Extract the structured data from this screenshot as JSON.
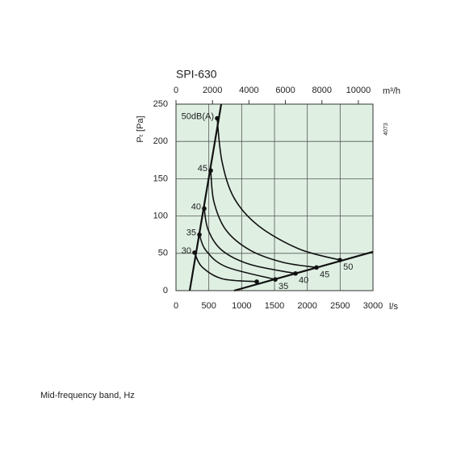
{
  "chart_data": {
    "type": "line",
    "title": "SPI-630",
    "x_label": "l/s",
    "x2_label": "m³/h",
    "y_label": "Pₜ [Pa]",
    "code": "4073",
    "xlim": [
      0,
      3000
    ],
    "xticks": [
      0,
      500,
      1000,
      1500,
      2000,
      2500,
      3000
    ],
    "x2lim": [
      0,
      10800
    ],
    "x2ticks": [
      0,
      2000,
      4000,
      6000,
      8000,
      10000
    ],
    "ylim": [
      0,
      250
    ],
    "yticks": [
      0,
      50,
      100,
      150,
      200,
      250
    ],
    "grid": true,
    "background": "#dff0e3",
    "series": [
      {
        "name": "50dB(A)",
        "end_label": "50",
        "color": "#111",
        "x": [
          627,
          701,
          886,
          1255,
          1870,
          2497
        ],
        "values": [
          231,
          173,
          124,
          87,
          56,
          41
        ]
      },
      {
        "name": "45",
        "end_label": "45",
        "color": "#111",
        "x": [
          529,
          578,
          763,
          1132,
          1624,
          2140
        ],
        "values": [
          161,
          119,
          81,
          54,
          38,
          31
        ]
      },
      {
        "name": "40",
        "end_label": "40",
        "color": "#111",
        "x": [
          430,
          492,
          701,
          1132,
          1820
        ],
        "values": [
          110,
          81,
          54,
          35,
          23
        ]
      },
      {
        "name": "35",
        "end_label": "35",
        "color": "#111",
        "x": [
          357,
          455,
          763,
          1513
        ],
        "values": [
          75,
          54,
          32,
          15
        ]
      },
      {
        "name": "30",
        "color": "#111",
        "x": [
          283,
          394,
          701,
          1230
        ],
        "values": [
          51,
          32,
          16,
          12
        ]
      }
    ],
    "limit_lines": [
      {
        "color": "#111",
        "x": [
          209,
          689
        ],
        "values": [
          0,
          250
        ]
      },
      {
        "color": "#111",
        "x": [
          886,
          3000
        ],
        "values": [
          0,
          52
        ]
      }
    ]
  },
  "footer": "Mid-frequency band, Hz"
}
